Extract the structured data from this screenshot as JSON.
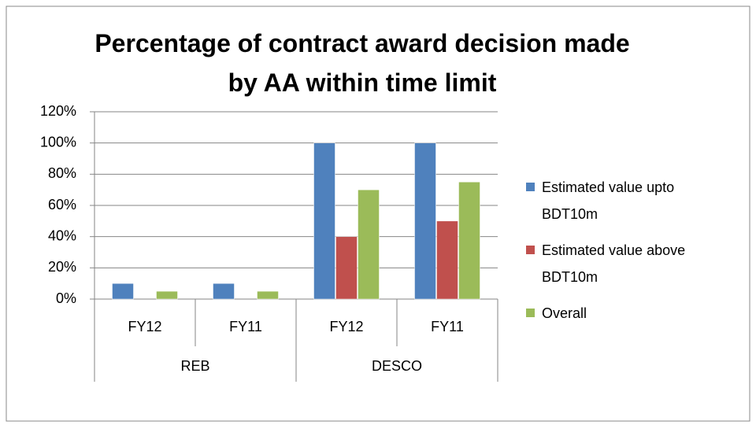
{
  "chart_data": {
    "type": "bar",
    "title": "Percentage  of contract award decision made by AA within time limit",
    "categories": [
      "FY12",
      "FY11",
      "FY12",
      "FY11"
    ],
    "groups": [
      "REB",
      "DESCO"
    ],
    "series": [
      {
        "name": "Estimated value upto BDT10m",
        "color": "#4f81bd",
        "values": [
          10,
          10,
          100,
          100
        ]
      },
      {
        "name": "Estimated value above BDT10m",
        "color": "#c0504d",
        "values": [
          0,
          0,
          40,
          50
        ]
      },
      {
        "name": "Overall",
        "color": "#9bbb59",
        "values": [
          5,
          5,
          70,
          75
        ]
      }
    ],
    "ylim": [
      0,
      120
    ],
    "yticks": [
      {
        "value": 0,
        "label": "0%"
      },
      {
        "value": 20,
        "label": "20%"
      },
      {
        "value": 40,
        "label": "40%"
      },
      {
        "value": 60,
        "label": "60%"
      },
      {
        "value": 80,
        "label": "80%"
      },
      {
        "value": 100,
        "label": "100%"
      },
      {
        "value": 120,
        "label": "120%"
      }
    ],
    "grid": true,
    "legend": "right"
  }
}
